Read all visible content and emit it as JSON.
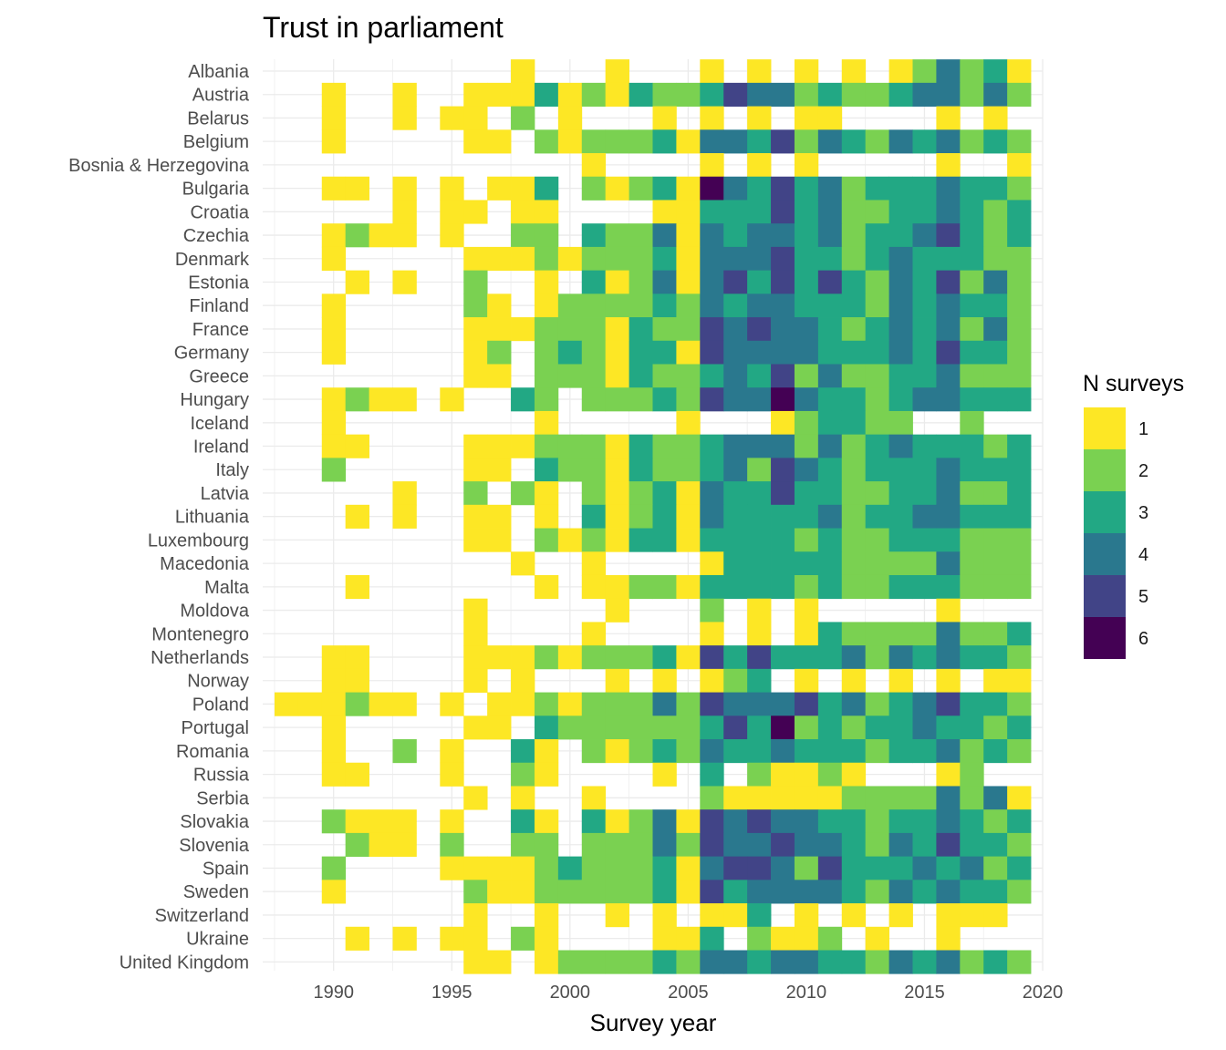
{
  "chart_data": {
    "type": "heatmap",
    "title": "Trust in parliament",
    "xlabel": "Survey year",
    "ylabel": "",
    "x_range": [
      1987,
      2020
    ],
    "x_ticks": [
      1990,
      1995,
      2000,
      2005,
      2010,
      2015,
      2020
    ],
    "grid": true,
    "legend": {
      "title": "N surveys",
      "position": "right",
      "levels": [
        1,
        2,
        3,
        4,
        5,
        6
      ],
      "colors": [
        "#FDE725",
        "#7AD151",
        "#22A884",
        "#2A788E",
        "#414487",
        "#440154"
      ]
    },
    "years": [
      1988,
      1989,
      1990,
      1991,
      1992,
      1993,
      1994,
      1995,
      1996,
      1997,
      1998,
      1999,
      2000,
      2001,
      2002,
      2003,
      2004,
      2005,
      2006,
      2007,
      2008,
      2009,
      2010,
      2011,
      2012,
      2013,
      2014,
      2015,
      2016,
      2017,
      2018,
      2019
    ],
    "countries": [
      "Albania",
      "Austria",
      "Belarus",
      "Belgium",
      "Bosnia & Herzegovina",
      "Bulgaria",
      "Croatia",
      "Czechia",
      "Denmark",
      "Estonia",
      "Finland",
      "France",
      "Germany",
      "Greece",
      "Hungary",
      "Iceland",
      "Ireland",
      "Italy",
      "Latvia",
      "Lithuania",
      "Luxembourg",
      "Macedonia",
      "Malta",
      "Moldova",
      "Montenegro",
      "Netherlands",
      "Norway",
      "Poland",
      "Portugal",
      "Romania",
      "Russia",
      "Serbia",
      "Slovakia",
      "Slovenia",
      "Spain",
      "Sweden",
      "Switzerland",
      "Ukraine",
      "United Kingdom"
    ],
    "values": [
      [
        0,
        0,
        0,
        0,
        0,
        0,
        0,
        0,
        0,
        0,
        1,
        0,
        0,
        0,
        1,
        0,
        0,
        0,
        1,
        0,
        1,
        0,
        1,
        0,
        1,
        0,
        1,
        2,
        4,
        2,
        3,
        1
      ],
      [
        0,
        0,
        1,
        0,
        0,
        1,
        0,
        0,
        1,
        1,
        1,
        3,
        1,
        2,
        1,
        3,
        2,
        2,
        3,
        5,
        4,
        4,
        2,
        3,
        2,
        2,
        3,
        4,
        4,
        2,
        4,
        2
      ],
      [
        0,
        0,
        1,
        0,
        0,
        1,
        0,
        1,
        1,
        0,
        2,
        0,
        1,
        0,
        0,
        0,
        1,
        0,
        1,
        0,
        1,
        0,
        1,
        1,
        0,
        0,
        0,
        0,
        1,
        0,
        1,
        0
      ],
      [
        0,
        0,
        1,
        0,
        0,
        0,
        0,
        0,
        1,
        1,
        0,
        2,
        1,
        2,
        2,
        2,
        3,
        1,
        4,
        4,
        3,
        5,
        2,
        4,
        3,
        2,
        4,
        3,
        4,
        2,
        3,
        2
      ],
      [
        0,
        0,
        0,
        0,
        0,
        0,
        0,
        0,
        0,
        0,
        0,
        0,
        0,
        1,
        0,
        0,
        0,
        0,
        1,
        0,
        1,
        0,
        1,
        0,
        0,
        0,
        0,
        0,
        1,
        0,
        0,
        1
      ],
      [
        0,
        0,
        1,
        1,
        0,
        1,
        0,
        1,
        0,
        1,
        1,
        3,
        0,
        2,
        1,
        2,
        3,
        1,
        6,
        4,
        3,
        5,
        3,
        4,
        2,
        3,
        3,
        3,
        4,
        3,
        3,
        2
      ],
      [
        0,
        0,
        0,
        0,
        0,
        1,
        0,
        1,
        1,
        0,
        1,
        1,
        0,
        0,
        0,
        0,
        1,
        1,
        3,
        3,
        3,
        5,
        3,
        4,
        2,
        2,
        3,
        3,
        4,
        3,
        2,
        3
      ],
      [
        0,
        0,
        1,
        2,
        1,
        1,
        0,
        1,
        0,
        0,
        2,
        2,
        0,
        3,
        2,
        2,
        4,
        1,
        4,
        3,
        4,
        4,
        3,
        4,
        2,
        3,
        3,
        4,
        5,
        3,
        2,
        3
      ],
      [
        0,
        0,
        1,
        0,
        0,
        0,
        0,
        0,
        1,
        1,
        1,
        2,
        1,
        2,
        2,
        2,
        3,
        1,
        4,
        4,
        4,
        5,
        3,
        3,
        2,
        3,
        4,
        3,
        3,
        3,
        2,
        2
      ],
      [
        0,
        0,
        0,
        1,
        0,
        1,
        0,
        0,
        2,
        0,
        0,
        1,
        0,
        3,
        1,
        2,
        4,
        1,
        4,
        5,
        3,
        5,
        3,
        5,
        3,
        2,
        4,
        3,
        5,
        2,
        4,
        2
      ],
      [
        0,
        0,
        1,
        0,
        0,
        0,
        0,
        0,
        2,
        1,
        0,
        1,
        2,
        2,
        2,
        2,
        3,
        2,
        4,
        3,
        4,
        4,
        3,
        3,
        3,
        2,
        4,
        3,
        4,
        3,
        3,
        2
      ],
      [
        0,
        0,
        1,
        0,
        0,
        0,
        0,
        0,
        1,
        1,
        1,
        2,
        2,
        2,
        1,
        3,
        2,
        2,
        5,
        4,
        5,
        4,
        4,
        3,
        2,
        3,
        4,
        3,
        4,
        2,
        4,
        2
      ],
      [
        0,
        0,
        1,
        0,
        0,
        0,
        0,
        0,
        1,
        2,
        0,
        2,
        3,
        2,
        1,
        3,
        3,
        1,
        5,
        4,
        4,
        4,
        4,
        3,
        3,
        3,
        4,
        3,
        5,
        3,
        3,
        2
      ],
      [
        0,
        0,
        0,
        0,
        0,
        0,
        0,
        0,
        1,
        1,
        0,
        2,
        2,
        2,
        1,
        3,
        2,
        2,
        3,
        4,
        3,
        5,
        2,
        4,
        2,
        2,
        3,
        3,
        4,
        2,
        2,
        2
      ],
      [
        0,
        0,
        1,
        2,
        1,
        1,
        0,
        1,
        0,
        0,
        3,
        2,
        0,
        2,
        2,
        2,
        3,
        2,
        5,
        4,
        4,
        6,
        4,
        3,
        3,
        2,
        3,
        4,
        4,
        3,
        3,
        3
      ],
      [
        0,
        0,
        1,
        0,
        0,
        0,
        0,
        0,
        0,
        0,
        0,
        1,
        0,
        0,
        0,
        0,
        0,
        1,
        0,
        0,
        0,
        1,
        2,
        3,
        3,
        2,
        2,
        0,
        0,
        2,
        0,
        0
      ],
      [
        0,
        0,
        1,
        1,
        0,
        0,
        0,
        0,
        1,
        1,
        1,
        2,
        2,
        2,
        1,
        3,
        2,
        2,
        3,
        4,
        4,
        4,
        2,
        4,
        2,
        3,
        4,
        3,
        3,
        3,
        2,
        3
      ],
      [
        0,
        0,
        2,
        0,
        0,
        0,
        0,
        0,
        1,
        1,
        0,
        3,
        2,
        2,
        1,
        3,
        2,
        2,
        3,
        4,
        2,
        5,
        4,
        3,
        2,
        3,
        3,
        3,
        4,
        3,
        3,
        3
      ],
      [
        0,
        0,
        0,
        0,
        0,
        1,
        0,
        0,
        2,
        0,
        2,
        1,
        0,
        2,
        1,
        2,
        3,
        1,
        4,
        3,
        3,
        5,
        3,
        3,
        2,
        2,
        3,
        3,
        4,
        2,
        2,
        3
      ],
      [
        0,
        0,
        0,
        1,
        0,
        1,
        0,
        0,
        1,
        1,
        0,
        1,
        0,
        3,
        1,
        2,
        3,
        1,
        4,
        3,
        3,
        3,
        3,
        4,
        2,
        3,
        3,
        4,
        4,
        3,
        3,
        3
      ],
      [
        0,
        0,
        0,
        0,
        0,
        0,
        0,
        0,
        1,
        1,
        0,
        2,
        1,
        2,
        1,
        3,
        3,
        1,
        3,
        3,
        3,
        3,
        2,
        3,
        2,
        2,
        3,
        3,
        3,
        2,
        2,
        2
      ],
      [
        0,
        0,
        0,
        0,
        0,
        0,
        0,
        0,
        0,
        0,
        1,
        0,
        0,
        1,
        0,
        0,
        0,
        0,
        1,
        3,
        3,
        3,
        3,
        3,
        2,
        2,
        2,
        2,
        4,
        2,
        2,
        2
      ],
      [
        0,
        0,
        0,
        1,
        0,
        0,
        0,
        0,
        0,
        0,
        0,
        1,
        0,
        1,
        1,
        2,
        2,
        1,
        3,
        3,
        3,
        3,
        2,
        3,
        2,
        2,
        3,
        3,
        3,
        2,
        2,
        2
      ],
      [
        0,
        0,
        0,
        0,
        0,
        0,
        0,
        0,
        1,
        0,
        0,
        0,
        0,
        0,
        1,
        0,
        0,
        0,
        2,
        0,
        1,
        0,
        1,
        0,
        0,
        0,
        0,
        0,
        1,
        0,
        0,
        0
      ],
      [
        0,
        0,
        0,
        0,
        0,
        0,
        0,
        0,
        1,
        0,
        0,
        0,
        0,
        1,
        0,
        0,
        0,
        0,
        1,
        0,
        1,
        0,
        1,
        3,
        2,
        2,
        2,
        2,
        4,
        2,
        2,
        3
      ],
      [
        0,
        0,
        1,
        1,
        0,
        0,
        0,
        0,
        1,
        1,
        1,
        2,
        1,
        2,
        2,
        2,
        3,
        1,
        5,
        3,
        5,
        3,
        3,
        3,
        4,
        2,
        4,
        3,
        4,
        3,
        3,
        2
      ],
      [
        0,
        0,
        1,
        1,
        0,
        0,
        0,
        0,
        1,
        0,
        1,
        0,
        0,
        0,
        1,
        0,
        1,
        0,
        1,
        2,
        3,
        0,
        1,
        0,
        1,
        0,
        1,
        0,
        1,
        0,
        1,
        1
      ],
      [
        1,
        1,
        1,
        2,
        1,
        1,
        0,
        1,
        0,
        1,
        1,
        2,
        1,
        2,
        2,
        2,
        4,
        2,
        5,
        4,
        4,
        4,
        5,
        3,
        4,
        2,
        3,
        4,
        5,
        3,
        3,
        2
      ],
      [
        0,
        0,
        1,
        0,
        0,
        0,
        0,
        0,
        1,
        1,
        0,
        3,
        2,
        2,
        2,
        2,
        2,
        2,
        3,
        5,
        3,
        6,
        2,
        3,
        2,
        3,
        3,
        4,
        3,
        3,
        2,
        3
      ],
      [
        0,
        0,
        1,
        0,
        0,
        2,
        0,
        1,
        0,
        0,
        3,
        1,
        0,
        2,
        1,
        2,
        3,
        2,
        4,
        3,
        3,
        4,
        3,
        3,
        3,
        2,
        3,
        3,
        4,
        2,
        3,
        2
      ],
      [
        0,
        0,
        1,
        1,
        0,
        0,
        0,
        1,
        0,
        0,
        2,
        1,
        0,
        0,
        0,
        0,
        1,
        0,
        3,
        0,
        2,
        1,
        1,
        2,
        1,
        0,
        0,
        0,
        1,
        2,
        0,
        0
      ],
      [
        0,
        0,
        0,
        0,
        0,
        0,
        0,
        0,
        1,
        0,
        1,
        0,
        0,
        1,
        0,
        0,
        0,
        0,
        2,
        1,
        1,
        1,
        1,
        1,
        2,
        2,
        2,
        2,
        4,
        2,
        4,
        1
      ],
      [
        0,
        0,
        2,
        1,
        1,
        1,
        0,
        1,
        0,
        0,
        3,
        1,
        0,
        3,
        1,
        2,
        4,
        1,
        5,
        4,
        5,
        4,
        4,
        3,
        3,
        2,
        3,
        3,
        4,
        3,
        2,
        3
      ],
      [
        0,
        0,
        0,
        2,
        1,
        1,
        0,
        2,
        0,
        0,
        2,
        2,
        0,
        2,
        2,
        2,
        4,
        2,
        5,
        4,
        4,
        5,
        4,
        4,
        3,
        2,
        4,
        3,
        5,
        3,
        3,
        2
      ],
      [
        0,
        0,
        2,
        0,
        0,
        0,
        0,
        1,
        1,
        1,
        1,
        2,
        3,
        2,
        2,
        2,
        3,
        1,
        4,
        5,
        5,
        4,
        2,
        5,
        3,
        3,
        3,
        4,
        3,
        4,
        2,
        3
      ],
      [
        0,
        0,
        1,
        0,
        0,
        0,
        0,
        0,
        2,
        1,
        1,
        2,
        2,
        2,
        2,
        2,
        3,
        1,
        5,
        3,
        4,
        4,
        4,
        4,
        3,
        2,
        4,
        3,
        4,
        3,
        3,
        2
      ],
      [
        0,
        0,
        0,
        0,
        0,
        0,
        0,
        0,
        1,
        0,
        0,
        1,
        0,
        0,
        1,
        0,
        1,
        0,
        1,
        1,
        3,
        0,
        1,
        0,
        1,
        0,
        1,
        0,
        1,
        1,
        1,
        0
      ],
      [
        0,
        0,
        0,
        1,
        0,
        1,
        0,
        1,
        1,
        0,
        2,
        1,
        0,
        0,
        0,
        0,
        1,
        1,
        3,
        0,
        2,
        1,
        1,
        2,
        0,
        1,
        0,
        0,
        1,
        0,
        0,
        0
      ],
      [
        0,
        0,
        0,
        0,
        0,
        0,
        0,
        0,
        1,
        1,
        0,
        1,
        2,
        2,
        2,
        2,
        3,
        2,
        4,
        4,
        3,
        4,
        4,
        3,
        3,
        2,
        4,
        3,
        4,
        2,
        3,
        2
      ]
    ]
  }
}
